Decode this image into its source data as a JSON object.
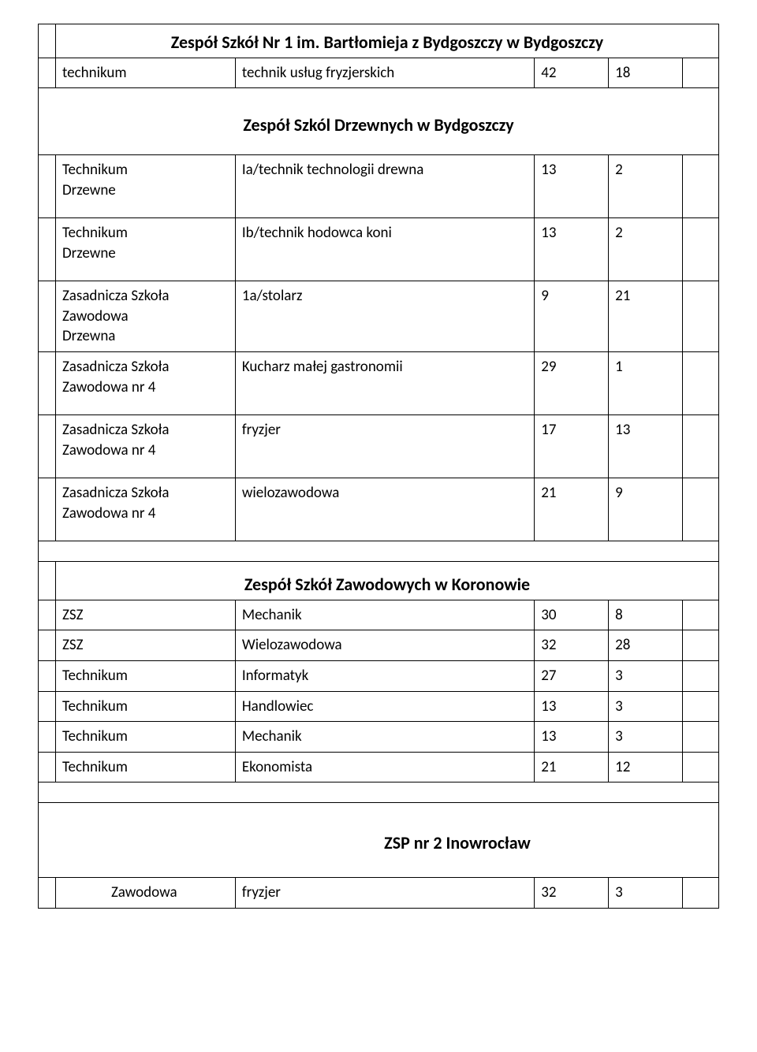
{
  "sections": {
    "s1": {
      "title": "Zespół Szkół Nr 1 im. Bartłomieja z Bydgoszczy w Bydgoszczy",
      "rows": [
        {
          "school": "technikum",
          "desc": "technik usług fryzjerskich",
          "n1": "42",
          "n2": "18"
        }
      ]
    },
    "s2": {
      "title": "Zespół Szkól Drzewnych w Bydgoszczy",
      "rows": [
        {
          "school": "Technikum\nDrzewne",
          "desc": "Ia/technik technologii drewna",
          "n1": "13",
          "n2": "2"
        },
        {
          "school": "Technikum\nDrzewne",
          "desc": "Ib/technik hodowca koni",
          "n1": "13",
          "n2": "2"
        },
        {
          "school": "Zasadnicza Szkoła\nZawodowa\nDrzewna",
          "desc": "1a/stolarz",
          "n1": "9",
          "n2": "21"
        },
        {
          "school": "Zasadnicza Szkoła\nZawodowa nr 4",
          "desc": "Kucharz małej gastronomii",
          "n1": "29",
          "n2": "1"
        },
        {
          "school": "Zasadnicza Szkoła\nZawodowa nr 4",
          "desc": "fryzjer",
          "n1": "17",
          "n2": "13"
        },
        {
          "school": "Zasadnicza Szkoła\nZawodowa nr 4",
          "desc": "wielozawodowa",
          "n1": "21",
          "n2": "9"
        }
      ]
    },
    "s3": {
      "title": "Zespół Szkół Zawodowych w Koronowie",
      "rows": [
        {
          "school": "ZSZ",
          "desc": "Mechanik",
          "n1": "30",
          "n2": "8"
        },
        {
          "school": "ZSZ",
          "desc": "Wielozawodowa",
          "n1": "32",
          "n2": "28"
        },
        {
          "school": "Technikum",
          "desc": "Informatyk",
          "n1": "27",
          "n2": "3"
        },
        {
          "school": "Technikum",
          "desc": "Handlowiec",
          "n1": "13",
          "n2": "3"
        },
        {
          "school": "Technikum",
          "desc": "Mechanik",
          "n1": "13",
          "n2": "3"
        },
        {
          "school": "Technikum",
          "desc": "Ekonomista",
          "n1": "21",
          "n2": "12"
        }
      ]
    },
    "s4": {
      "title": "ZSP nr 2 Inowrocław",
      "rows": [
        {
          "school": "Zawodowa",
          "desc": "fryzjer",
          "n1": "32",
          "n2": "3"
        }
      ]
    }
  }
}
